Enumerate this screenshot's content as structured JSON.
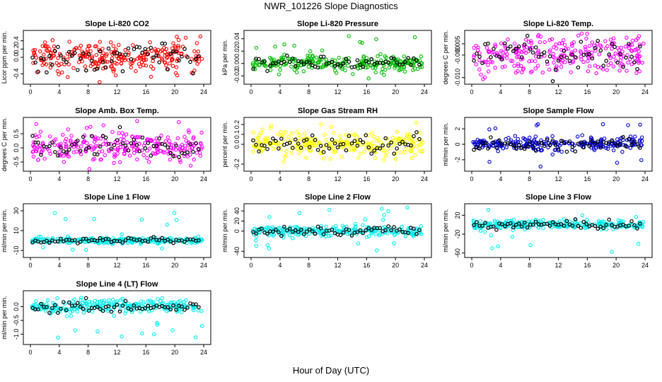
{
  "figure": {
    "title": "NWR_101226  Slope Diagnostics",
    "xlabel": "Hour of Day (UTC)"
  },
  "chart_data": [
    {
      "type": "scatter",
      "title": "Slope Li-820 CO2",
      "ylabel": "Licor ppm per min.",
      "xlim": [
        0,
        24
      ],
      "ylim": [
        -0.6,
        0.6
      ],
      "yticks": [
        -0.4,
        0.0,
        0.2,
        0.4
      ],
      "ytick_labels": [
        "-0.4",
        "0.0",
        "0.2",
        "0.4"
      ],
      "color": "#ff0000",
      "spread": 0.18,
      "outlier_range": [
        -0.55,
        0.55
      ]
    },
    {
      "type": "scatter",
      "title": "Slope Li-820 Pressure",
      "ylabel": "kPa per min.",
      "xlim": [
        0,
        24
      ],
      "ylim": [
        -0.03,
        0.05
      ],
      "yticks": [
        -0.02,
        0.0,
        0.02,
        0.04
      ],
      "ytick_labels": [
        "-0.02",
        "0.00",
        "0.02",
        "0.04"
      ],
      "color": "#00bb00",
      "spread": 0.006,
      "outlier_range": [
        -0.02,
        0.045
      ]
    },
    {
      "type": "scatter",
      "title": "Slope Li-820 Temp.",
      "ylabel": "degrees C per min.",
      "xlim": [
        0,
        24
      ],
      "ylim": [
        -0.012,
        0.01
      ],
      "yticks": [
        -0.01,
        0.0,
        0.005
      ],
      "ytick_labels": [
        "-0.010",
        "-0.000",
        "0.005"
      ],
      "color": "#ff00ff",
      "spread": 0.004,
      "outlier_range": [
        -0.011,
        0.009
      ]
    },
    {
      "type": "scatter",
      "title": "Slope Amb. Box Temp.",
      "ylabel": "degrees C per min.",
      "xlim": [
        0,
        24
      ],
      "ylim": [
        -0.75,
        1.0
      ],
      "yticks": [
        -0.5,
        0.0,
        0.5
      ],
      "ytick_labels": [
        "-0.5",
        "0.0",
        "0.5"
      ],
      "color": "#ff00ff",
      "spread": 0.25,
      "outlier_range": [
        -0.7,
        0.95
      ]
    },
    {
      "type": "scatter",
      "title": "Slope Gas Stream RH",
      "ylabel": "percent per min.",
      "xlim": [
        0,
        24
      ],
      "ylim": [
        -0.25,
        0.25
      ],
      "yticks": [
        -0.2,
        0.0,
        0.1,
        0.2
      ],
      "ytick_labels": [
        "-0.2",
        "0.0",
        "0.1",
        "0.2"
      ],
      "color": "#ffff00",
      "spread": 0.06,
      "outlier_range": [
        -0.22,
        0.22
      ]
    },
    {
      "type": "scatter",
      "title": "Slope Sample Flow",
      "ylabel": "ml/min per min.",
      "xlim": [
        0,
        24
      ],
      "ylim": [
        -3.2,
        3.2
      ],
      "yticks": [
        -2,
        0,
        2
      ],
      "ytick_labels": [
        "-2",
        "0",
        "2"
      ],
      "color": "#0000cc",
      "spread": 0.4,
      "outlier_range": [
        -3,
        3
      ]
    },
    {
      "type": "scatter",
      "title": "Slope Line 1 Flow",
      "ylabel": "ml/min per min.",
      "xlim": [
        0,
        24
      ],
      "ylim": [
        -15,
        35
      ],
      "yticks": [
        -10,
        10,
        30
      ],
      "ytick_labels": [
        "-10",
        "10",
        "30"
      ],
      "color": "#00eeee",
      "spread": 1.5,
      "outlier_range": [
        -10,
        32
      ]
    },
    {
      "type": "scatter",
      "title": "Slope Line 2 Flow",
      "ylabel": "ml/min per min.",
      "xlim": [
        0,
        24
      ],
      "ylim": [
        -48,
        50
      ],
      "yticks": [
        -40,
        0,
        20,
        40
      ],
      "ytick_labels": [
        "-40",
        "0",
        "20",
        "40"
      ],
      "color": "#00eeee",
      "spread": 5,
      "outlier_range": [
        -45,
        48
      ]
    },
    {
      "type": "scatter",
      "title": "Slope Line 3 Flow",
      "ylabel": "ml/min per min.",
      "xlim": [
        0,
        24
      ],
      "ylim": [
        -65,
        40
      ],
      "yticks": [
        -60,
        -20,
        20
      ],
      "ytick_labels": [
        "-60",
        "-20",
        "20"
      ],
      "color": "#00eeee",
      "spread": 5,
      "outlier_range": [
        -60,
        38
      ]
    },
    {
      "type": "scatter",
      "title": "Slope Line 4 (LT) Flow",
      "ylabel": "ml/min per min.",
      "xlim": [
        0,
        24
      ],
      "ylim": [
        -1.3,
        0.5
      ],
      "yticks": [
        -1.0,
        -0.5,
        0.0
      ],
      "ytick_labels": [
        "-1.0",
        "-0.5",
        "0.0"
      ],
      "color": "#00eeee",
      "spread": 0.12,
      "outlier_range": [
        -1.2,
        0.4
      ]
    }
  ]
}
